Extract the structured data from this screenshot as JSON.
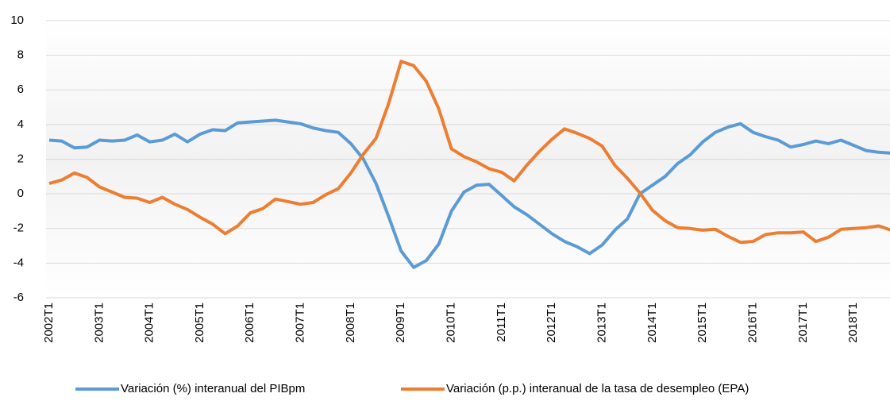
{
  "chart_data": {
    "type": "line",
    "categories": [
      "2002T1",
      null,
      null,
      null,
      "2003T1",
      null,
      null,
      null,
      "2004T1",
      null,
      null,
      null,
      "2005T1",
      null,
      null,
      null,
      "2006T1",
      null,
      null,
      null,
      "2007T1",
      null,
      null,
      null,
      "2008T1",
      null,
      null,
      null,
      "2009T1",
      null,
      null,
      null,
      "2010T1",
      null,
      null,
      null,
      "2011T1",
      null,
      null,
      null,
      "2012T1",
      null,
      null,
      null,
      "2013T1",
      null,
      null,
      null,
      "2014T1",
      null,
      null,
      null,
      "2015T1",
      null,
      null,
      null,
      "2016T1",
      null,
      null,
      null,
      "2017T1",
      null,
      null,
      null,
      "2018T1",
      null,
      null,
      null
    ],
    "series": [
      {
        "name": "Variación (%) interanual del PIBpm",
        "color": "#5b9bd5",
        "values": [
          3.1,
          3.05,
          2.65,
          2.7,
          3.1,
          3.05,
          3.1,
          3.4,
          3.0,
          3.1,
          3.45,
          3.0,
          3.45,
          3.7,
          3.65,
          4.1,
          4.15,
          4.2,
          4.25,
          4.15,
          4.05,
          3.8,
          3.65,
          3.55,
          2.9,
          2.0,
          0.6,
          -1.3,
          -3.3,
          -4.25,
          -3.85,
          -2.9,
          -1.0,
          0.1,
          0.5,
          0.55,
          -0.1,
          -0.75,
          -1.2,
          -1.75,
          -2.3,
          -2.75,
          -3.05,
          -3.45,
          -2.95,
          -2.1,
          -1.45,
          0.0,
          0.5,
          1.0,
          1.75,
          2.25,
          3.0,
          3.55,
          3.85,
          4.05,
          3.55,
          3.3,
          3.1,
          2.7,
          2.85,
          3.05,
          2.9,
          3.1,
          2.8,
          2.5,
          2.4,
          2.35
        ]
      },
      {
        "name": "Variación (p.p.) interanual de la tasa de desempleo (EPA)",
        "color": "#ed7d31",
        "values": [
          0.6,
          0.8,
          1.2,
          0.95,
          0.4,
          0.1,
          -0.2,
          -0.25,
          -0.5,
          -0.2,
          -0.6,
          -0.9,
          -1.35,
          -1.75,
          -2.3,
          -1.85,
          -1.1,
          -0.85,
          -0.3,
          -0.45,
          -0.6,
          -0.5,
          -0.05,
          0.3,
          1.2,
          2.3,
          3.2,
          5.2,
          7.65,
          7.4,
          6.5,
          4.9,
          2.6,
          2.15,
          1.85,
          1.45,
          1.25,
          0.75,
          1.65,
          2.45,
          3.15,
          3.75,
          3.5,
          3.2,
          2.75,
          1.65,
          0.9,
          0.05,
          -0.95,
          -1.55,
          -1.95,
          -2.0,
          -2.1,
          -2.05,
          -2.45,
          -2.8,
          -2.75,
          -2.35,
          -2.25,
          -2.25,
          -2.2,
          -2.75,
          -2.5,
          -2.05,
          -2.0,
          -1.95,
          -1.85,
          -2.1
        ]
      }
    ],
    "ylim": [
      -6,
      10
    ],
    "yticks": [
      -6,
      -4,
      -2,
      0,
      2,
      4,
      6,
      8,
      10
    ],
    "grid": true
  }
}
